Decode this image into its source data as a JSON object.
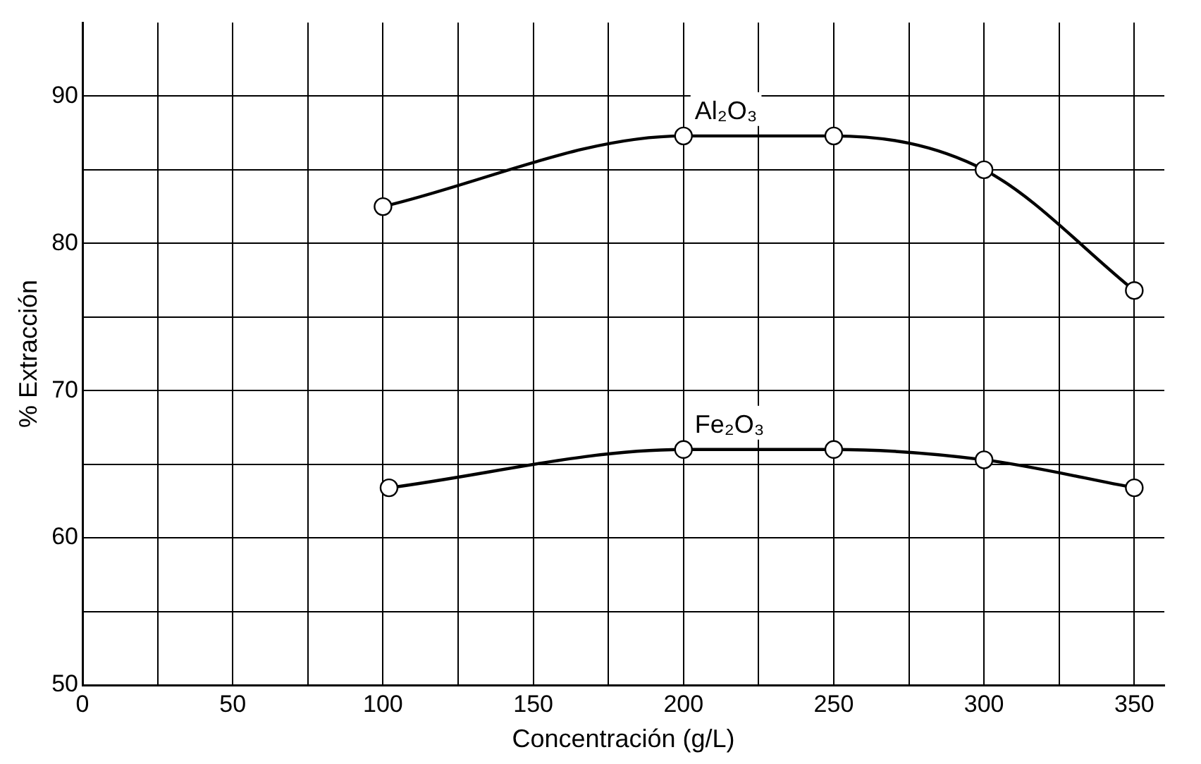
{
  "chart_data": {
    "type": "line",
    "xlabel": "Concentración (g/L)",
    "ylabel": "% Extracción",
    "xlim": [
      0,
      360
    ],
    "xticks": [
      0,
      {
        "value": 25,
        "label": null
      },
      50,
      {
        "value": 75,
        "label": null
      },
      100,
      {
        "value": 125,
        "label": null
      },
      150,
      {
        "value": 175,
        "label": null
      },
      200,
      {
        "value": 225,
        "label": null
      },
      250,
      {
        "value": 275,
        "label": null
      },
      300,
      {
        "value": 325,
        "label": null
      },
      350
    ],
    "ylim": [
      50,
      95
    ],
    "yticks": [
      50,
      {
        "value": 55,
        "label": null
      },
      60,
      {
        "value": 65,
        "label": null
      },
      70,
      {
        "value": 75,
        "label": null
      },
      80,
      {
        "value": 85,
        "label": null
      },
      90
    ],
    "grid": true,
    "legend": false,
    "marker": "circle",
    "line_style": "solid",
    "series": [
      {
        "name": "Al₂O₃",
        "color": "#000000",
        "x": [
          100,
          200,
          250,
          300,
          350
        ],
        "values": [
          82.5,
          87.3,
          87.3,
          85.0,
          76.8
        ]
      },
      {
        "name": "Fe₂O₃",
        "color": "#000000",
        "x": [
          102,
          200,
          250,
          300,
          350
        ],
        "values": [
          63.4,
          66.0,
          66.0,
          65.3,
          63.4
        ]
      }
    ]
  }
}
